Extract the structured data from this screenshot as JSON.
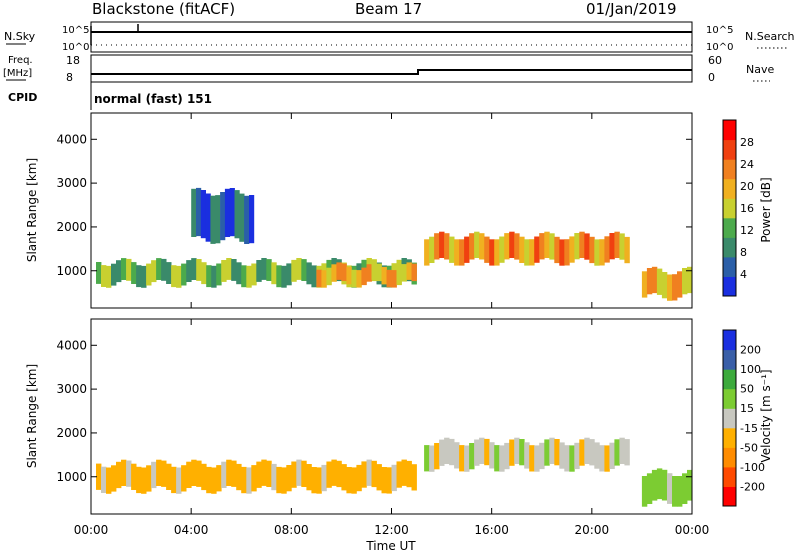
{
  "header": {
    "station": "Blackstone (fitACF)",
    "beam": "Beam 17",
    "date": "01/Jan/2019"
  },
  "panels": {
    "nsky_label": "N.Sky",
    "nsky_ticks": [
      "10^5",
      "10^0"
    ],
    "nsearch_label": "N.Search",
    "freq_label": "Freq.",
    "freq_unit": "[MHz]",
    "freq_ticks": [
      "18",
      "8"
    ],
    "nave_label": "Nave",
    "nave_ticks": [
      "60",
      "0"
    ],
    "cpid_label": "CPID",
    "cpid_value": "normal (fast) 151"
  },
  "colors": {
    "power_scale": [
      "#1a2fe0",
      "#2b5fa8",
      "#3a8a6a",
      "#4caa4c",
      "#c8d030",
      "#f0b020",
      "#f08020",
      "#f04010",
      "#ff0000"
    ],
    "velocity_scale": [
      "#ff0000",
      "#ff4a00",
      "#ff8c00",
      "#ffb000",
      "#c8c8c0",
      "#7ccc32",
      "#3caa3c",
      "#3a5fa8",
      "#1a2fe0"
    ]
  },
  "chart_data": [
    {
      "type": "heatmap",
      "name": "power",
      "ylabel": "Slant Range [km]",
      "yticks": [
        "1000",
        "2000",
        "3000",
        "4000"
      ],
      "xticks": [
        "00:00",
        "04:00",
        "08:00",
        "12:00",
        "16:00",
        "20:00",
        "00:00"
      ],
      "ylim": [
        150,
        4600
      ],
      "xlim": [
        0,
        24
      ],
      "colorbar_label": "Power [dB]",
      "colorbar_ticks": [
        "4",
        "8",
        "12",
        "16",
        "20",
        "24",
        "28"
      ],
      "bands": [
        {
          "x": [
            0.2,
            13.0
          ],
          "y_low": 700,
          "y_high": 1200,
          "value": 14
        },
        {
          "x": [
            9.0,
            13.0
          ],
          "y_low": 700,
          "y_high": 1100,
          "value": 22
        },
        {
          "x": [
            13.3,
            21.5
          ],
          "y_low": 1200,
          "y_high": 1800,
          "value": 24
        },
        {
          "x": [
            22.0,
            24.0
          ],
          "y_low": 400,
          "y_high": 1000,
          "value": 22
        },
        {
          "x": [
            4.0,
            6.5
          ],
          "y_low": 1700,
          "y_high": 2800,
          "value": 6
        }
      ]
    },
    {
      "type": "heatmap",
      "name": "velocity",
      "ylabel": "Slant Range [km]",
      "yticks": [
        "1000",
        "2000",
        "3000",
        "4000"
      ],
      "xticks": [
        "00:00",
        "04:00",
        "08:00",
        "12:00",
        "16:00",
        "20:00",
        "00:00"
      ],
      "xlabel": "Time UT",
      "ylim": [
        150,
        4600
      ],
      "xlim": [
        0,
        24
      ],
      "colorbar_label": "Velocity [m s⁻¹]",
      "colorbar_ticks": [
        "-200",
        "-100",
        "-50",
        "-15",
        "15",
        "50",
        "100",
        "200"
      ],
      "bands": [
        {
          "x": [
            0.2,
            13.0
          ],
          "y_low": 700,
          "y_high": 1300,
          "value": -30
        },
        {
          "x": [
            13.3,
            21.5
          ],
          "y_low": 1200,
          "y_high": 1800,
          "value": 0
        },
        {
          "x": [
            22.0,
            24.0
          ],
          "y_low": 400,
          "y_high": 1100,
          "value": 30
        }
      ]
    }
  ]
}
